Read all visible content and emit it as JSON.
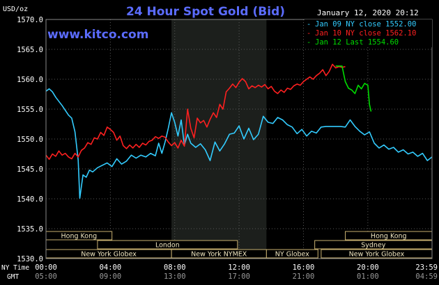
{
  "chart_data": {
    "type": "line",
    "title": "24 Hour Spot Gold (Bid)",
    "website": "www.kitco.com",
    "timestamp": "January 12, 2020 20:12",
    "ylabel": "USD/oz",
    "ylim": [
      1530,
      1570
    ],
    "y_ticks": [
      "1570.0",
      "1565.0",
      "1560.0",
      "1555.0",
      "1550.0",
      "1545.0",
      "1540.0",
      "1535.0",
      "1530.0"
    ],
    "x_row_labels": {
      "ny": "NY Time",
      "gmt": "GMT"
    },
    "x_ticks_ny": [
      "00:00",
      "04:00",
      "08:00",
      "12:00",
      "16:00",
      "20:00",
      "23:59"
    ],
    "x_ticks_gmt": [
      "05:00",
      "09:00",
      "13:00",
      "17:00",
      "21:00",
      "01:00",
      "04:59"
    ],
    "legend": {
      "position": "top-right",
      "entries": [
        {
          "label": "Jan 09 NY close 1552.00",
          "color": "#33ccff"
        },
        {
          "label": "Jan 10 NY close 1562.10",
          "color": "#ff2020"
        },
        {
          "label": "Jan 12 Last 1554.60",
          "color": "#00dd00"
        }
      ]
    },
    "shaded_period": {
      "from_hour": 7.8,
      "to_hour": 13.7
    },
    "markets": [
      {
        "label": "Hong Kong",
        "row": 0,
        "start": 0,
        "end": 4.1
      },
      {
        "label": "Hong Kong",
        "row": 0,
        "start": 18.6,
        "end": 23.99
      },
      {
        "label": "London",
        "row": 1,
        "start": 3.2,
        "end": 11.9
      },
      {
        "label": "Sydney",
        "row": 1,
        "start": 16.7,
        "end": 23.99
      },
      {
        "label": "New York Globex",
        "row": 2,
        "start": 0,
        "end": 7.8
      },
      {
        "label": "New York NYMEX",
        "row": 2,
        "start": 7.8,
        "end": 13.7
      },
      {
        "label": "NY Globex",
        "row": 2,
        "start": 13.7,
        "end": 16.9
      },
      {
        "label": "New York Globex",
        "row": 2,
        "start": 17.1,
        "end": 23.99
      }
    ],
    "series": [
      {
        "name": "Jan 09",
        "color": "#33ccff",
        "x": [
          0,
          0.2,
          0.4,
          0.6,
          0.8,
          1.0,
          1.2,
          1.4,
          1.6,
          1.8,
          2.0,
          2.1,
          2.3,
          2.5,
          2.7,
          2.9,
          3.2,
          3.5,
          3.8,
          4.1,
          4.4,
          4.7,
          5.0,
          5.3,
          5.6,
          5.9,
          6.2,
          6.5,
          6.8,
          7.0,
          7.2,
          7.4,
          7.6,
          7.8,
          8.0,
          8.2,
          8.4,
          8.6,
          8.8,
          9.0,
          9.3,
          9.6,
          9.9,
          10.2,
          10.5,
          10.8,
          11.1,
          11.4,
          11.7,
          12.0,
          12.3,
          12.6,
          12.9,
          13.2,
          13.5,
          13.8,
          14.1,
          14.4,
          14.7,
          15.0,
          15.3,
          15.6,
          15.9,
          16.2,
          16.5,
          16.8,
          17.1,
          17.4,
          17.7,
          18.0,
          18.3,
          18.6,
          18.9,
          19.2,
          19.5,
          19.8,
          20.1,
          20.4,
          20.7,
          21.0,
          21.3,
          21.6,
          21.9,
          22.2,
          22.5,
          22.8,
          23.1,
          23.4,
          23.7,
          23.99
        ],
        "y": [
          1558.0,
          1558.4,
          1557.9,
          1557.0,
          1556.3,
          1555.6,
          1554.8,
          1554.0,
          1553.5,
          1551.2,
          1546.5,
          1540.1,
          1544.0,
          1543.6,
          1544.8,
          1544.5,
          1545.2,
          1545.6,
          1546.0,
          1545.4,
          1546.7,
          1545.8,
          1546.3,
          1547.3,
          1546.8,
          1547.3,
          1547.0,
          1547.6,
          1547.2,
          1549.3,
          1547.6,
          1549.5,
          1551.8,
          1554.4,
          1552.8,
          1550.5,
          1553.2,
          1549.0,
          1550.8,
          1549.3,
          1548.6,
          1549.2,
          1548.2,
          1546.4,
          1549.5,
          1548.0,
          1549.2,
          1550.8,
          1551.0,
          1552.2,
          1550.0,
          1551.8,
          1549.9,
          1550.8,
          1553.8,
          1552.8,
          1552.6,
          1553.6,
          1553.2,
          1552.4,
          1552.0,
          1550.9,
          1551.6,
          1550.5,
          1551.3,
          1551.0,
          1552.0,
          1552.1,
          1552.1,
          1552.1,
          1552.1,
          1552.0,
          1553.2,
          1552.1,
          1551.3,
          1550.7,
          1551.2,
          1549.3,
          1548.5,
          1549.0,
          1548.3,
          1548.6,
          1547.8,
          1548.2,
          1547.5,
          1547.8,
          1547.1,
          1547.6,
          1546.4,
          1547.0
        ]
      },
      {
        "name": "Jan 10",
        "color": "#ff2020",
        "x": [
          0,
          0.2,
          0.4,
          0.6,
          0.8,
          1.0,
          1.2,
          1.4,
          1.6,
          1.8,
          2.0,
          2.2,
          2.4,
          2.6,
          2.8,
          3.0,
          3.2,
          3.4,
          3.6,
          3.8,
          4.0,
          4.2,
          4.4,
          4.6,
          4.8,
          5.0,
          5.2,
          5.4,
          5.6,
          5.8,
          6.0,
          6.2,
          6.4,
          6.6,
          6.8,
          7.0,
          7.2,
          7.4,
          7.6,
          7.8,
          8.0,
          8.2,
          8.4,
          8.6,
          8.8,
          9.0,
          9.2,
          9.4,
          9.6,
          9.8,
          10.0,
          10.2,
          10.4,
          10.6,
          10.8,
          11.0,
          11.2,
          11.4,
          11.6,
          11.8,
          12.0,
          12.2,
          12.4,
          12.6,
          12.8,
          13.0,
          13.2,
          13.4,
          13.6,
          13.8,
          14.0,
          14.2,
          14.4,
          14.6,
          14.8,
          15.0,
          15.2,
          15.4,
          15.6,
          15.8,
          16.0,
          16.2,
          16.4,
          16.6,
          16.8,
          17.0,
          17.2,
          17.4,
          17.6,
          17.8,
          18.0,
          18.2,
          18.4,
          18.6
        ],
        "y": [
          1547.3,
          1546.6,
          1547.5,
          1547.1,
          1548.0,
          1547.3,
          1547.6,
          1547.0,
          1546.7,
          1547.6,
          1547.0,
          1548.1,
          1548.5,
          1549.4,
          1549.1,
          1550.2,
          1550.0,
          1551.1,
          1550.6,
          1552.0,
          1551.6,
          1551.1,
          1549.8,
          1550.5,
          1548.9,
          1548.4,
          1549.0,
          1548.5,
          1549.1,
          1548.6,
          1549.3,
          1549.0,
          1549.6,
          1549.8,
          1550.4,
          1550.1,
          1550.5,
          1550.3,
          1549.5,
          1548.9,
          1549.4,
          1548.5,
          1549.8,
          1548.8,
          1555.0,
          1551.8,
          1550.2,
          1553.5,
          1552.7,
          1553.1,
          1552.0,
          1553.3,
          1554.4,
          1553.6,
          1555.8,
          1555.0,
          1557.9,
          1558.5,
          1559.2,
          1558.6,
          1559.5,
          1560.1,
          1559.6,
          1558.4,
          1558.9,
          1558.6,
          1559.0,
          1558.7,
          1559.1,
          1558.4,
          1558.8,
          1558.0,
          1557.6,
          1558.2,
          1557.8,
          1558.5,
          1558.3,
          1558.9,
          1559.2,
          1559.0,
          1559.6,
          1560.0,
          1560.4,
          1560.0,
          1560.6,
          1561.0,
          1561.6,
          1560.6,
          1561.3,
          1562.5,
          1561.9,
          1562.1,
          1562.0,
          1562.1
        ]
      },
      {
        "name": "Jan 12",
        "color": "#00dd00",
        "x": [
          18.0,
          18.2,
          18.4,
          18.6,
          18.8,
          19.0,
          19.2,
          19.4,
          19.6,
          19.8,
          20.0,
          20.1,
          20.2
        ],
        "y": [
          1562.2,
          1562.2,
          1562.2,
          1559.6,
          1558.5,
          1558.2,
          1557.6,
          1559.0,
          1558.4,
          1559.3,
          1559.0,
          1555.8,
          1554.6
        ]
      }
    ]
  }
}
